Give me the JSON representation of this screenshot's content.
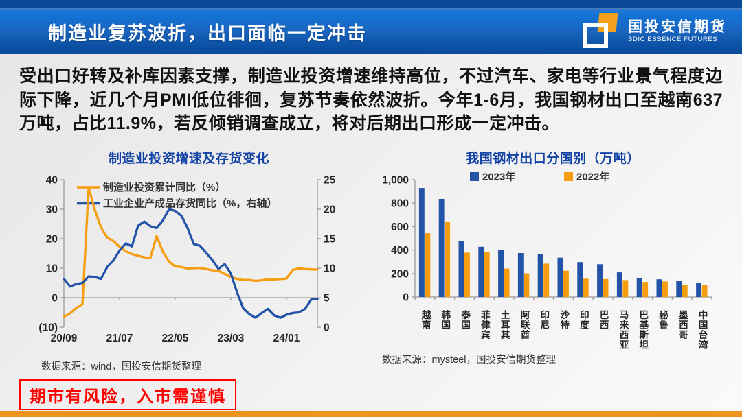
{
  "header": {
    "title": "制造业复苏波折，出口面临一定冲击",
    "brand_cn": "国投安信期货",
    "brand_en": "SDIC ESSENCE FUTURES"
  },
  "summary": "受出口好转及补库因素支撑，制造业投资增速维持高位，不过汽车、家电等行业景气程度边际下降，近几个月PMI低位徘徊，复苏节奏依然波折。今年1-6月，我国钢材出口至越南637万吨，占比11.9%，若反倾销调查成立，将对后期出口形成一定冲击。",
  "footer": {
    "disclaimer": "期市有风险，入市需谨慎"
  },
  "colors": {
    "header_blue_top": "#0a4a99",
    "header_gradient_start": "#1272d4",
    "header_gradient_end": "#0a4c9c",
    "chart_title_blue": "#1243a5",
    "series_blue": "#2353a7",
    "series_orange": "#f59d0e",
    "axis_gray": "#9a9a9a",
    "bottom_bar_orange": "#f0921e",
    "disclaimer_red": "#ff0000"
  },
  "chart_data": [
    {
      "type": "line",
      "title": "制造业投资增速及存货变化",
      "source": "数据来源：wind，国投安信期货整理",
      "x_start": "2020/09",
      "x_end": "2024/06",
      "x_tick_labels": [
        "20/09",
        "21/07",
        "22/05",
        "23/03",
        "24/01"
      ],
      "x_tick_indices": [
        0,
        9,
        18,
        27,
        36
      ],
      "left_axis": {
        "min": -10,
        "max": 40,
        "ticks": [
          "40",
          "30",
          "20",
          "10",
          "0",
          "(10)"
        ]
      },
      "right_axis": {
        "min": 0,
        "max": 25,
        "ticks": [
          "25",
          "20",
          "15",
          "10",
          "5",
          "0"
        ]
      },
      "grid": "zero-line-only",
      "legend_position": "top-left",
      "series": [
        {
          "name": "制造业投资累计同比（%）",
          "axis": "left",
          "color": "#f59d0e",
          "values": [
            -6.5,
            -5.3,
            -3.5,
            -2.2,
            37.3,
            29.8,
            23.8,
            20.4,
            19.2,
            17.3,
            15.7,
            14.8,
            14.2,
            13.7,
            13.5,
            20.9,
            15.6,
            12.2,
            10.6,
            10.4,
            9.9,
            10.0,
            10.1,
            9.7,
            9.3,
            9.1,
            8.1,
            7.0,
            6.4,
            6.0,
            6.0,
            5.7,
            5.9,
            6.2,
            6.2,
            6.3,
            6.5,
            9.4,
            9.9,
            9.7,
            9.6,
            9.5
          ]
        },
        {
          "name": "工业企业产成品存货同比（%，右轴）",
          "axis": "right",
          "color": "#2353a7",
          "values": [
            8.2,
            6.9,
            7.3,
            7.5,
            8.6,
            8.5,
            8.2,
            10.2,
            11.3,
            13.0,
            14.2,
            13.7,
            17.2,
            17.9,
            17.1,
            16.8,
            18.1,
            20.0,
            19.7,
            18.9,
            16.8,
            14.1,
            13.8,
            12.6,
            11.4,
            9.9,
            10.7,
            9.1,
            5.9,
            3.2,
            2.2,
            1.6,
            2.4,
            3.1,
            2.0,
            1.6,
            2.1,
            2.4,
            2.5,
            3.1,
            4.7,
            4.8
          ]
        }
      ]
    },
    {
      "type": "bar",
      "title": "我国钢材出口分国别（万吨）",
      "source": "数据来源：mysteel，国投安信期货整理",
      "categories": [
        "越南",
        "韩国",
        "泰国",
        "菲律宾",
        "土耳其",
        "阿联酋",
        "印尼",
        "沙特",
        "印度",
        "巴西",
        "马来西亚",
        "巴基斯坦",
        "秘鲁",
        "墨西哥",
        "中国台湾"
      ],
      "ylim": [
        0,
        1000
      ],
      "y_tick_step": 200,
      "y_tick_labels": [
        "1,000",
        "800",
        "600",
        "400",
        "200",
        "0"
      ],
      "grid": "off",
      "legend_position": "top",
      "series": [
        {
          "name": "2023年",
          "color": "#2353a7",
          "values": [
            929,
            836,
            475,
            428,
            398,
            374,
            365,
            335,
            297,
            279,
            210,
            163,
            151,
            138,
            120
          ]
        },
        {
          "name": "2022年",
          "color": "#f59d0e",
          "values": [
            543,
            640,
            378,
            384,
            242,
            202,
            284,
            224,
            156,
            153,
            144,
            128,
            132,
            104,
            102
          ]
        }
      ]
    }
  ]
}
